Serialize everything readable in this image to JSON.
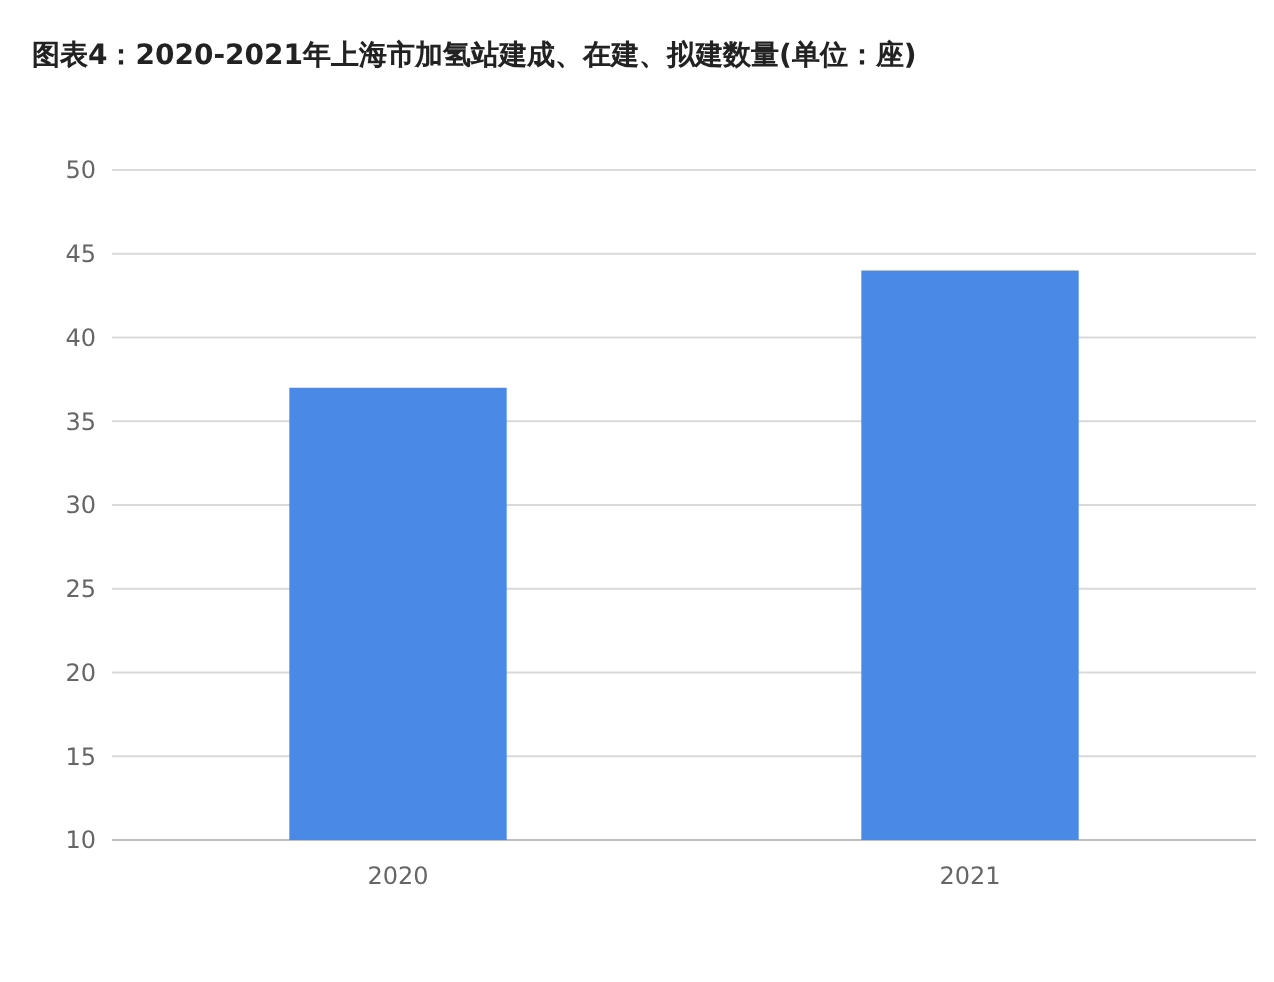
{
  "chart_data": {
    "type": "bar",
    "title": "图表4：2020-2021年上海市加氢站建成、在建、拟建数量(单位：座)",
    "categories": [
      "2020",
      "2021"
    ],
    "values": [
      37,
      44
    ],
    "color": "#4a8ae6",
    "ylim": [
      10,
      50
    ],
    "yticks": [
      10,
      15,
      20,
      25,
      30,
      35,
      40,
      45,
      50
    ],
    "grid": "y"
  }
}
